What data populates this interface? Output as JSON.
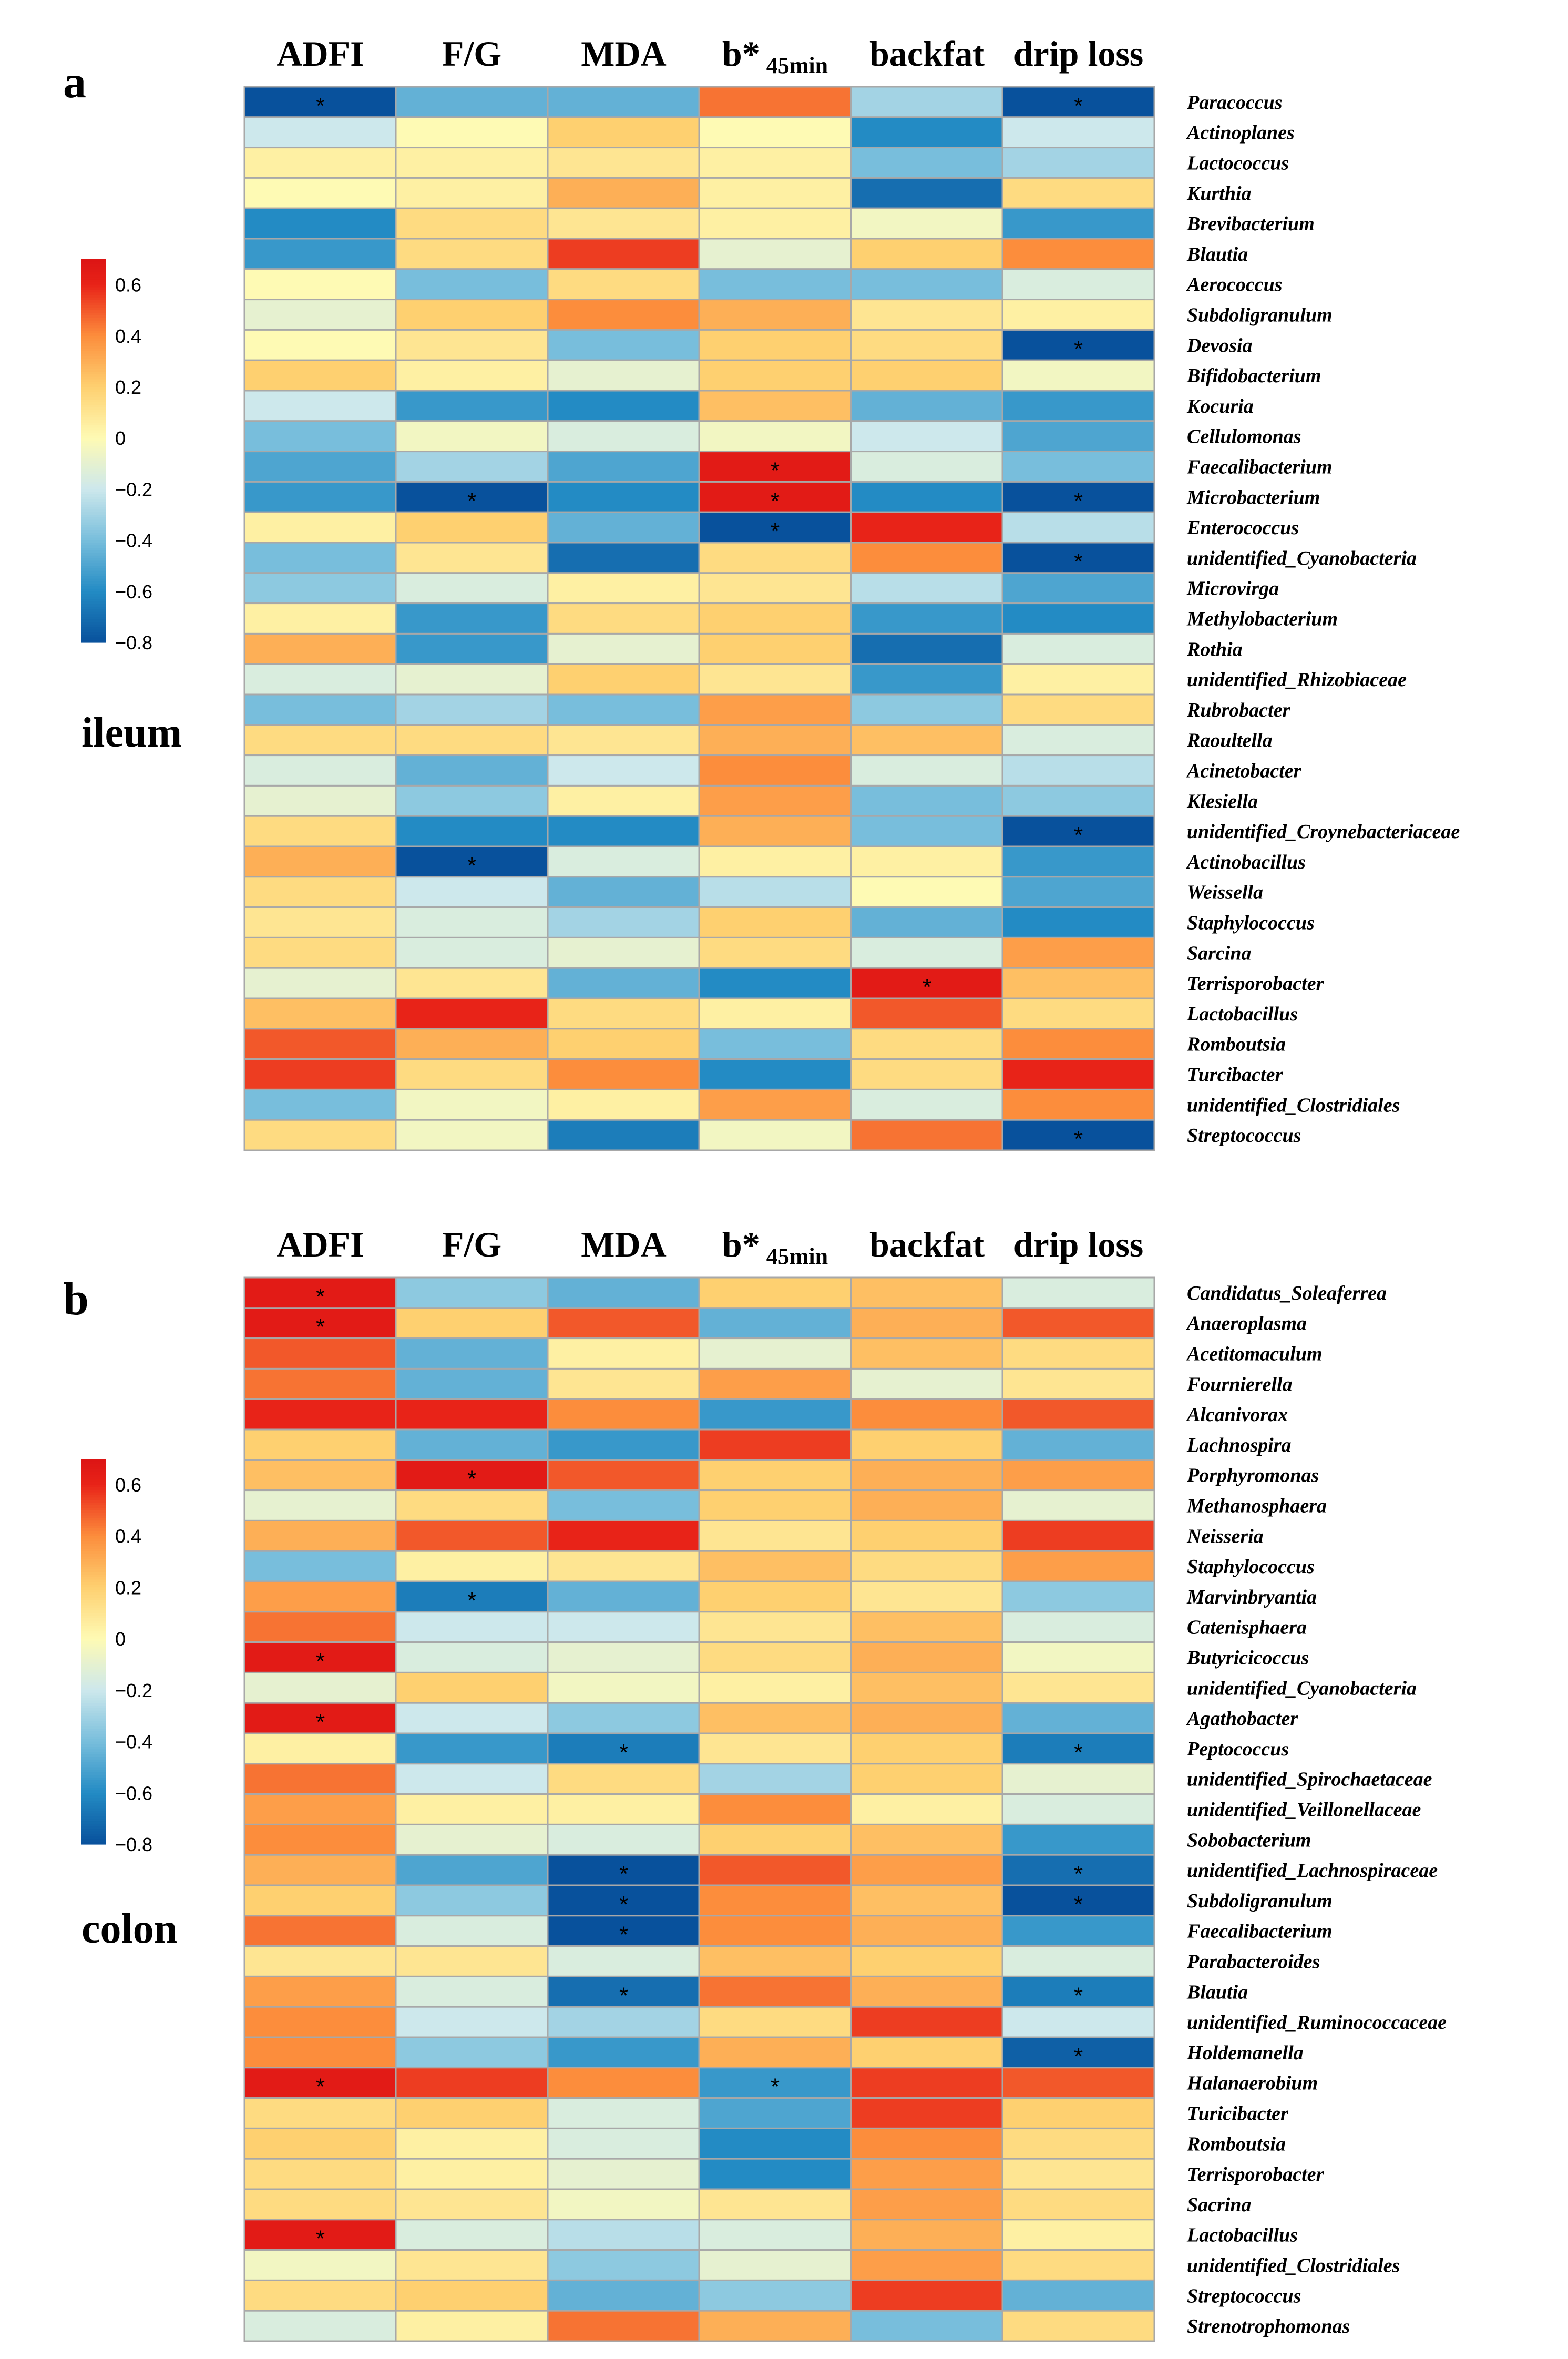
{
  "figure": {
    "col_header_parts": [
      {
        "main": "ADFI",
        "sub": ""
      },
      {
        "main": "F/G",
        "sub": ""
      },
      {
        "main": "MDA",
        "sub": ""
      },
      {
        "main": "b*",
        "sub": "45min"
      },
      {
        "main": "backfat",
        "sub": ""
      },
      {
        "main": "drip loss",
        "sub": ""
      }
    ],
    "colorbar_ticks": [
      "0.6",
      "0.4",
      "0.2",
      "0",
      "−0.2",
      "−0.4",
      "−0.6",
      "−0.8"
    ]
  },
  "chart_data": [
    {
      "type": "heatmap",
      "panel": "a",
      "title": "ileum",
      "columns": [
        "ADFI",
        "F/G",
        "MDA",
        "b* 45min",
        "backfat",
        "drip loss"
      ],
      "rows": [
        "Paracoccus",
        "Actinoplanes",
        "Lactococcus",
        "Kurthia",
        "Brevibacterium",
        "Blautia",
        "Aerococcus",
        "Subdoligranulum",
        "Devosia",
        "Bifidobacterium",
        "Kocuria",
        "Cellulomonas",
        "Faecalibacterium",
        "Microbacterium",
        "Enterococcus",
        "unidentified_Cyanobacteria",
        "Microvirga",
        "Methylobacterium",
        "Rothia",
        "unidentified_Rhizobiaceae",
        "Rubrobacter",
        "Raoultella",
        "Acinetobacter",
        "Klesiella",
        "unidentified_Croynebacteriaceae",
        "Actinobacillus",
        "Weissella",
        "Staphylococcus",
        "Sarcina",
        "Terrisporobacter",
        "Lactobacillus",
        "Romboutsia",
        "Turcibacter",
        "unidentified_Clostridiales",
        "Streptococcus"
      ],
      "values": [
        [
          -0.8,
          -0.45,
          -0.45,
          0.45,
          -0.3,
          -0.8
        ],
        [
          -0.2,
          0.0,
          0.2,
          0.0,
          -0.6,
          -0.2
        ],
        [
          0.05,
          0.05,
          0.1,
          0.05,
          -0.4,
          -0.3
        ],
        [
          0.0,
          0.05,
          0.3,
          0.05,
          -0.7,
          0.15
        ],
        [
          -0.6,
          0.15,
          0.1,
          0.05,
          -0.05,
          -0.55
        ],
        [
          -0.55,
          0.15,
          0.55,
          -0.1,
          0.2,
          0.4
        ],
        [
          0.0,
          -0.4,
          0.15,
          -0.4,
          -0.4,
          -0.15
        ],
        [
          -0.1,
          0.2,
          0.4,
          0.3,
          0.1,
          0.05
        ],
        [
          0.0,
          0.1,
          -0.4,
          0.2,
          0.15,
          -0.8
        ],
        [
          0.2,
          0.05,
          -0.1,
          0.2,
          0.2,
          -0.05
        ],
        [
          -0.2,
          -0.55,
          -0.6,
          0.25,
          -0.45,
          -0.55
        ],
        [
          -0.4,
          -0.05,
          -0.15,
          -0.05,
          -0.2,
          -0.5
        ],
        [
          -0.5,
          -0.3,
          -0.5,
          0.65,
          -0.15,
          -0.4
        ],
        [
          -0.55,
          -0.8,
          -0.6,
          0.65,
          -0.6,
          -0.8
        ],
        [
          0.05,
          0.2,
          -0.45,
          -0.8,
          0.6,
          -0.25
        ],
        [
          -0.4,
          0.1,
          -0.7,
          0.15,
          0.4,
          -0.8
        ],
        [
          -0.35,
          -0.15,
          0.05,
          0.1,
          -0.25,
          -0.5
        ],
        [
          0.05,
          -0.55,
          0.15,
          0.2,
          -0.55,
          -0.6
        ],
        [
          0.3,
          -0.55,
          -0.1,
          0.2,
          -0.7,
          -0.15
        ],
        [
          -0.15,
          -0.1,
          0.2,
          0.1,
          -0.55,
          0.05
        ],
        [
          -0.4,
          -0.3,
          -0.4,
          0.35,
          -0.35,
          0.15
        ],
        [
          0.15,
          0.15,
          0.1,
          0.3,
          0.25,
          -0.15
        ],
        [
          -0.15,
          -0.45,
          -0.2,
          0.4,
          -0.15,
          -0.25
        ],
        [
          -0.1,
          -0.35,
          0.05,
          0.35,
          -0.4,
          -0.35
        ],
        [
          0.15,
          -0.6,
          -0.6,
          0.3,
          -0.4,
          -0.8
        ],
        [
          0.3,
          -0.8,
          -0.15,
          0.05,
          0.05,
          -0.55
        ],
        [
          0.15,
          -0.2,
          -0.45,
          -0.25,
          0.0,
          -0.5
        ],
        [
          0.1,
          -0.15,
          -0.3,
          0.2,
          -0.45,
          -0.6
        ],
        [
          0.15,
          -0.15,
          -0.1,
          0.15,
          -0.15,
          0.35
        ],
        [
          -0.1,
          0.1,
          -0.45,
          -0.6,
          0.65,
          0.25
        ],
        [
          0.25,
          0.6,
          0.15,
          0.05,
          0.5,
          0.15
        ],
        [
          0.5,
          0.3,
          0.2,
          -0.4,
          0.15,
          0.4
        ],
        [
          0.55,
          0.15,
          0.4,
          -0.6,
          0.15,
          0.6
        ],
        [
          -0.4,
          -0.05,
          0.05,
          0.35,
          -0.15,
          0.4
        ],
        [
          0.15,
          -0.05,
          -0.65,
          -0.05,
          0.45,
          -0.8
        ]
      ],
      "significant": [
        [
          0,
          0
        ],
        [
          0,
          5
        ],
        [
          8,
          5
        ],
        [
          12,
          3
        ],
        [
          13,
          1
        ],
        [
          13,
          3
        ],
        [
          13,
          5
        ],
        [
          14,
          3
        ],
        [
          15,
          5
        ],
        [
          24,
          5
        ],
        [
          25,
          1
        ],
        [
          29,
          4
        ],
        [
          34,
          5
        ]
      ],
      "colorbar": {
        "min": -0.8,
        "max": 0.6
      }
    },
    {
      "type": "heatmap",
      "panel": "b",
      "title": "colon",
      "columns": [
        "ADFI",
        "F/G",
        "MDA",
        "b* 45min",
        "backfat",
        "drip loss"
      ],
      "rows": [
        "Candidatus_Soleaferrea",
        "Anaeroplasma",
        "Acetitomaculum",
        "Fournierella",
        "Alcanivorax",
        "Lachnospira",
        "Porphyromonas",
        "Methanosphaera",
        "Neisseria",
        "Staphylococcus",
        "Marvinbryantia",
        "Catenisphaera",
        "Butyricicoccus",
        "unidentified_Cyanobacteria",
        "Agathobacter",
        "Peptococcus",
        "unidentified_Spirochaetaceae",
        "unidentified_Veillonellaceae",
        "Sobobacterium",
        "unidentified_Lachnospiraceae",
        "Subdoligranulum",
        "Faecalibacterium",
        "Parabacteroides",
        "Blautia",
        "unidentified_Ruminococcaceae",
        "Holdemanella",
        "Halanaerobium",
        "Turicibacter",
        "Romboutsia",
        "Terrisporobacter",
        "Sacrina",
        "Lactobacillus",
        "unidentified_Clostridiales",
        "Streptococcus",
        "Strenotrophomonas"
      ],
      "values": [
        [
          0.65,
          -0.35,
          -0.45,
          0.2,
          0.25,
          -0.15
        ],
        [
          0.65,
          0.2,
          0.5,
          -0.45,
          0.3,
          0.5
        ],
        [
          0.5,
          -0.45,
          0.05,
          -0.1,
          0.25,
          0.15
        ],
        [
          0.45,
          -0.45,
          0.1,
          0.35,
          -0.1,
          0.1
        ],
        [
          0.6,
          0.6,
          0.4,
          -0.55,
          0.4,
          0.5
        ],
        [
          0.2,
          -0.45,
          -0.55,
          0.55,
          0.2,
          -0.45
        ],
        [
          0.25,
          0.65,
          0.5,
          0.2,
          0.3,
          0.35
        ],
        [
          -0.1,
          0.15,
          -0.4,
          0.2,
          0.3,
          -0.1
        ],
        [
          0.3,
          0.5,
          0.6,
          0.1,
          0.2,
          0.55
        ],
        [
          -0.4,
          0.05,
          0.1,
          0.25,
          0.15,
          0.35
        ],
        [
          0.35,
          -0.65,
          -0.45,
          0.2,
          0.1,
          -0.35
        ],
        [
          0.45,
          -0.2,
          -0.2,
          0.1,
          0.25,
          -0.15
        ],
        [
          0.65,
          -0.15,
          -0.1,
          0.15,
          0.3,
          -0.05
        ],
        [
          -0.1,
          0.2,
          -0.05,
          0.05,
          0.25,
          0.1
        ],
        [
          0.65,
          -0.2,
          -0.35,
          0.25,
          0.3,
          -0.45
        ],
        [
          0.05,
          -0.55,
          -0.65,
          0.1,
          0.2,
          -0.65
        ],
        [
          0.45,
          -0.2,
          0.15,
          -0.3,
          0.2,
          -0.1
        ],
        [
          0.35,
          0.05,
          0.05,
          0.4,
          0.05,
          -0.15
        ],
        [
          0.4,
          -0.1,
          -0.15,
          0.2,
          0.25,
          -0.55
        ],
        [
          0.3,
          -0.5,
          -0.8,
          0.5,
          0.35,
          -0.7
        ],
        [
          0.2,
          -0.35,
          -0.8,
          0.4,
          0.25,
          -0.8
        ],
        [
          0.45,
          -0.15,
          -0.8,
          0.4,
          0.3,
          -0.55
        ],
        [
          0.1,
          0.1,
          -0.15,
          0.25,
          0.2,
          -0.15
        ],
        [
          0.35,
          -0.15,
          -0.7,
          0.45,
          0.3,
          -0.65
        ],
        [
          0.4,
          -0.2,
          -0.3,
          0.15,
          0.55,
          -0.2
        ],
        [
          0.4,
          -0.35,
          -0.55,
          0.3,
          0.2,
          -0.75
        ],
        [
          0.65,
          0.55,
          0.4,
          -0.55,
          0.55,
          0.5
        ],
        [
          0.15,
          0.2,
          -0.15,
          -0.5,
          0.55,
          0.2
        ],
        [
          0.2,
          0.05,
          -0.15,
          -0.6,
          0.4,
          0.15
        ],
        [
          0.15,
          0.05,
          -0.1,
          -0.6,
          0.35,
          0.1
        ],
        [
          0.15,
          0.1,
          -0.05,
          0.1,
          0.35,
          0.15
        ],
        [
          0.65,
          -0.15,
          -0.25,
          -0.15,
          0.3,
          0.05
        ],
        [
          -0.05,
          0.1,
          -0.35,
          -0.1,
          0.35,
          0.15
        ],
        [
          0.15,
          0.2,
          -0.45,
          -0.35,
          0.55,
          -0.45
        ],
        [
          -0.15,
          0.05,
          0.45,
          0.3,
          -0.4,
          0.15
        ]
      ],
      "significant": [
        [
          0,
          0
        ],
        [
          1,
          0
        ],
        [
          6,
          1
        ],
        [
          10,
          1
        ],
        [
          12,
          0
        ],
        [
          14,
          0
        ],
        [
          15,
          2
        ],
        [
          15,
          5
        ],
        [
          19,
          2
        ],
        [
          19,
          5
        ],
        [
          20,
          2
        ],
        [
          20,
          5
        ],
        [
          21,
          2
        ],
        [
          23,
          2
        ],
        [
          23,
          5
        ],
        [
          25,
          5
        ],
        [
          26,
          0
        ],
        [
          26,
          3
        ],
        [
          31,
          0
        ]
      ],
      "colorbar": {
        "min": -0.8,
        "max": 0.6
      }
    }
  ]
}
